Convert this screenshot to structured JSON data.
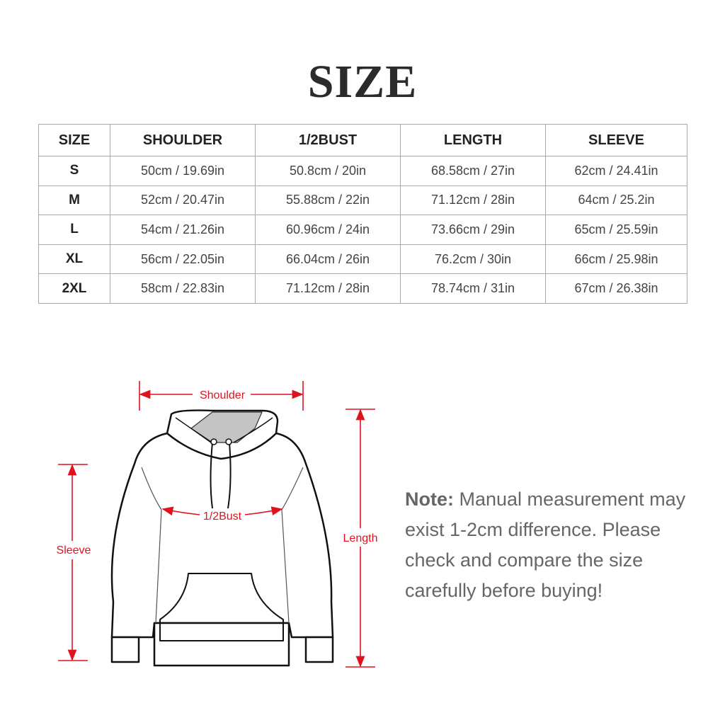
{
  "title": "SIZE",
  "table": {
    "headers": [
      "SIZE",
      "SHOULDER",
      "1/2BUST",
      "LENGTH",
      "SLEEVE"
    ],
    "rows": [
      [
        "S",
        "50cm / 19.69in",
        "50.8cm / 20in",
        "68.58cm / 27in",
        "62cm / 24.41in"
      ],
      [
        "M",
        "52cm / 20.47in",
        "55.88cm / 22in",
        "71.12cm / 28in",
        "64cm / 25.2in"
      ],
      [
        "L",
        "54cm / 21.26in",
        "60.96cm / 24in",
        "73.66cm / 29in",
        "65cm / 25.59in"
      ],
      [
        "XL",
        "56cm / 22.05in",
        "66.04cm / 26in",
        "76.2cm / 30in",
        "66cm / 25.98in"
      ],
      [
        "2XL",
        "58cm / 22.83in",
        "71.12cm / 28in",
        "78.74cm / 31in",
        "67cm / 26.38in"
      ]
    ]
  },
  "diagram": {
    "labels": {
      "shoulder": "Shoulder",
      "bust": "1/2Bust",
      "sleeve": "Sleeve",
      "length": "Length"
    },
    "accent_color": "#e0121f"
  },
  "note": {
    "label": "Note:",
    "text": " Manual measurement may exist 1-2cm difference. Please check and compare the size carefully before buying!"
  }
}
